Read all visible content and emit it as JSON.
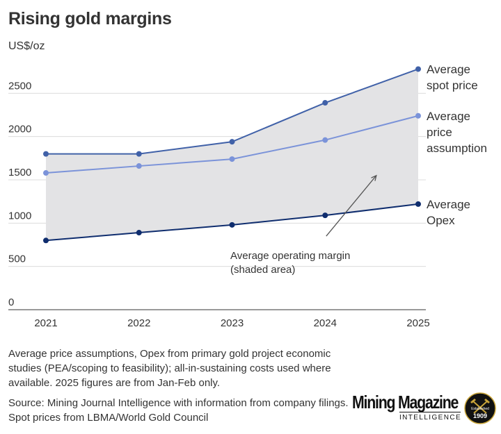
{
  "title": "Rising gold margins",
  "unit_label": "US$/oz",
  "chart_data": {
    "type": "line",
    "title": "Rising gold margins",
    "ylabel": "US$/oz",
    "xlabel": "",
    "x": [
      "2021",
      "2022",
      "2023",
      "2024",
      "2025"
    ],
    "ylim": [
      0,
      2800
    ],
    "yticks": [
      0,
      500,
      1000,
      1500,
      2000,
      2500
    ],
    "grid": true,
    "series": [
      {
        "name": "Average spot price",
        "label_lines": [
          "Average",
          "spot price"
        ],
        "color": "#4061a8",
        "values": [
          1800,
          1800,
          1940,
          2390,
          2780
        ]
      },
      {
        "name": "Average price assumption",
        "label_lines": [
          "Average",
          "price",
          "assumption"
        ],
        "color": "#7b93d9",
        "values": [
          1580,
          1660,
          1740,
          1960,
          2240
        ]
      },
      {
        "name": "Average Opex",
        "label_lines": [
          "Average",
          "Opex"
        ],
        "color": "#0f2d6e",
        "values": [
          800,
          890,
          980,
          1090,
          1220
        ]
      }
    ],
    "shaded_area": {
      "between": [
        "Average spot price",
        "Average Opex"
      ],
      "color": "#e3e3e5"
    },
    "annotation": {
      "lines": [
        "Average operating margin",
        "(shaded area)"
      ]
    }
  },
  "notes": {
    "methodology": "Average price assumptions, Opex from primary gold project economic studies (PEA/scoping to feasibility); all-in-sustaining costs used where available. 2025 figures are from Jan-Feb  only.",
    "source": "Source: Mining Journal Intelligence with information from company filings. Spot prices from LBMA/World Gold Council"
  },
  "logo": {
    "name": "Mining Magazine",
    "subtitle": "INTELLIGENCE",
    "badge_top": "Established",
    "badge_year": "1909"
  }
}
